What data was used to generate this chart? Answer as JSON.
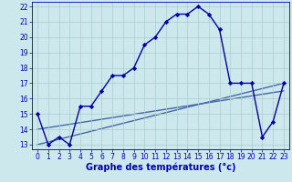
{
  "hours": [
    0,
    1,
    2,
    3,
    4,
    5,
    6,
    7,
    8,
    9,
    10,
    11,
    12,
    13,
    14,
    15,
    16,
    17,
    18,
    19,
    20,
    21,
    22,
    23
  ],
  "temps": [
    15,
    13,
    13.5,
    13,
    15.5,
    15.5,
    16.5,
    17.5,
    17.5,
    18,
    19.5,
    20,
    21,
    21.5,
    21.5,
    22,
    21.5,
    20.5,
    17,
    17,
    17,
    13.5,
    14.5,
    17
  ],
  "ref_line1": {
    "x": [
      0,
      23
    ],
    "y": [
      13,
      17
    ]
  },
  "ref_line2": {
    "x": [
      0,
      23
    ],
    "y": [
      14,
      16.5
    ]
  },
  "ylim": [
    12.7,
    22.3
  ],
  "xlim": [
    -0.5,
    23.5
  ],
  "yticks": [
    13,
    14,
    15,
    16,
    17,
    18,
    19,
    20,
    21,
    22
  ],
  "xticks": [
    0,
    1,
    2,
    3,
    4,
    5,
    6,
    7,
    8,
    9,
    10,
    11,
    12,
    13,
    14,
    15,
    16,
    17,
    18,
    19,
    20,
    21,
    22,
    23
  ],
  "xlabel": "Graphe des températures (°c)",
  "bg_color": "#cde8ec",
  "grid_color": "#aacccc",
  "line_color": "#0000aa",
  "ref_color": "#4466aa",
  "marker": "D",
  "marker_size": 2.2,
  "line_width": 1.0,
  "xlabel_fontsize": 7.0,
  "tick_fontsize": 5.5,
  "tick_color": "#0000bb"
}
